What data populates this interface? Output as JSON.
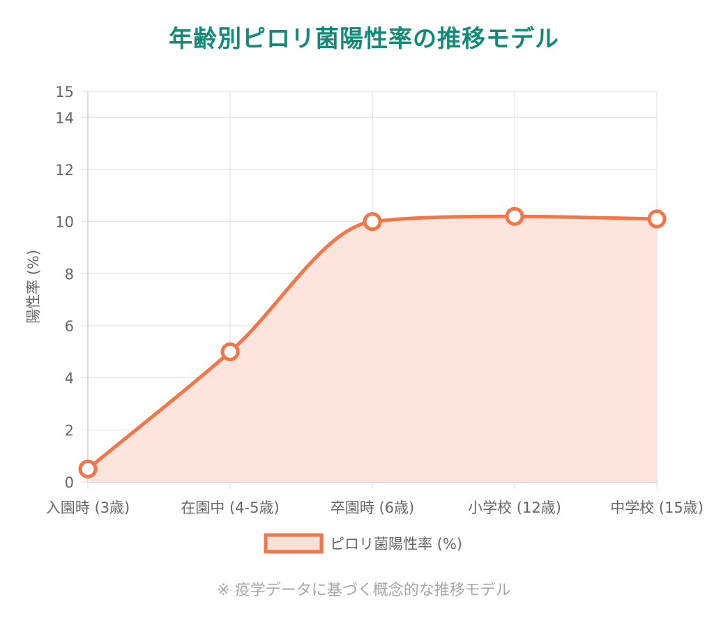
{
  "title": "年齢別ピロリ菌陽性率の推移モデル",
  "footnote": "※ 疫学データに基づく概念的な推移モデル",
  "chart_data": {
    "type": "area",
    "title": "年齢別ピロリ菌陽性率の推移モデル",
    "xlabel": "",
    "ylabel": "陽性率 (%)",
    "categories": [
      "入園時 (3歳)",
      "在園中 (4-5歳)",
      "卒園時 (6歳)",
      "小学校 (12歳)",
      "中学校 (15歳)"
    ],
    "series": [
      {
        "name": "ピロリ菌陽性率 (%)",
        "values": [
          0.5,
          5.0,
          10.0,
          10.2,
          10.1
        ],
        "line_color": "#f47548",
        "fill_color": "#fde1d8"
      }
    ],
    "yticks": [
      0,
      2,
      4,
      6,
      8,
      10,
      12,
      14,
      15
    ],
    "ylim": [
      0,
      15
    ],
    "grid": true,
    "legend": "bottom"
  }
}
